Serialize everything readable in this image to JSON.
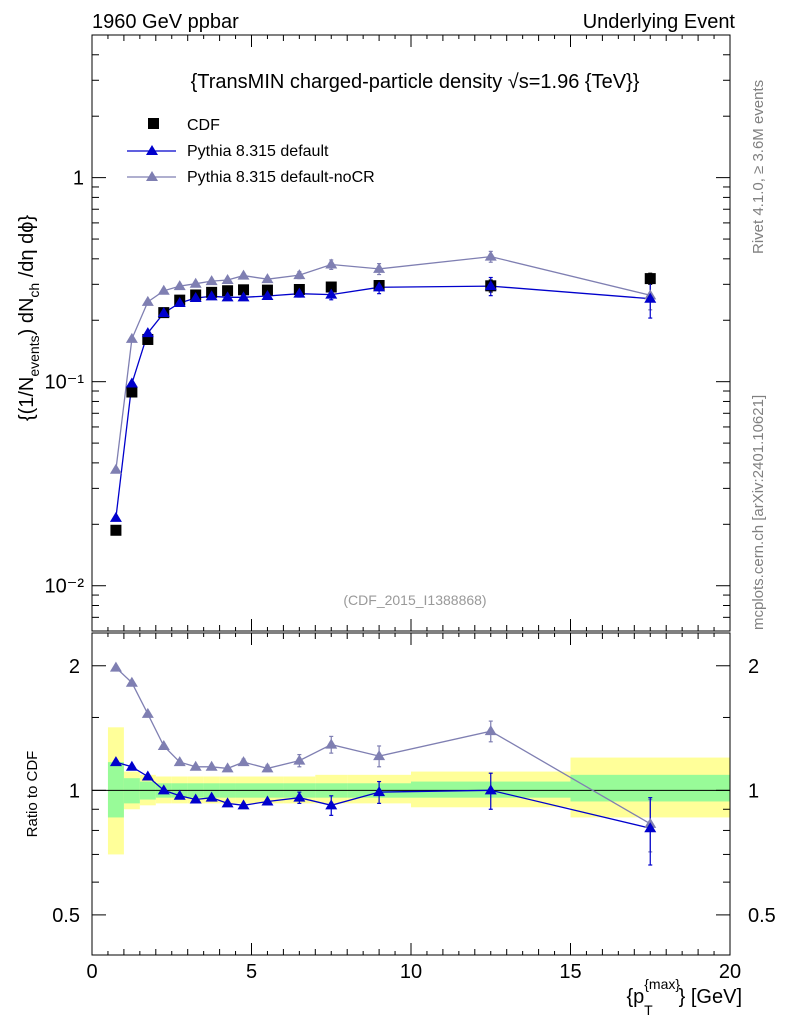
{
  "header": {
    "left": "1960 GeV ppbar",
    "right": "Underlying Event",
    "side_top": "Rivet 4.1.0, ≥ 3.6M events",
    "side_bottom": "mcplots.cern.ch [arXiv:2401.10621]"
  },
  "colors": {
    "cdf": "#000000",
    "pythia_default": "#0000cc",
    "pythia_nocr": "#7f7fb2",
    "band_inner": "#98fb98",
    "band_outer": "#ffff99",
    "watermark": "#999999"
  },
  "chart_data": [
    {
      "type": "scatter",
      "title": "{TransMIN charged-particle density √s=1.96 {TeV}}",
      "ylabel": "{(1/Nevents) dNch /dη dϕ}",
      "ylabel_parts": {
        "a": "{(1/N",
        "sub1": "events",
        "b": ") dN",
        "sub2": "ch",
        "c": " /dη  dϕ}"
      },
      "yscale": "log",
      "ylim": [
        0.006,
        5
      ],
      "xlim": [
        0,
        20
      ],
      "y_tick_labels": [
        {
          "value": 1,
          "label": "1"
        },
        {
          "value": 0.1,
          "label": "10⁻¹"
        },
        {
          "value": 0.01,
          "label": "10⁻²"
        }
      ],
      "watermark": "(CDF_2015_I1388868)",
      "legend_position": "top-left",
      "x": [
        0.75,
        1.25,
        1.75,
        2.25,
        2.75,
        3.25,
        3.75,
        4.25,
        4.75,
        5.5,
        6.5,
        7.5,
        9.0,
        12.5,
        17.5
      ],
      "series": [
        {
          "name": "CDF",
          "marker": "square",
          "values": [
            0.0187,
            0.089,
            0.161,
            0.218,
            0.251,
            0.266,
            0.274,
            0.279,
            0.282,
            0.281,
            0.283,
            0.291,
            0.296,
            0.295,
            0.32
          ],
          "errors": [
            0,
            0,
            0,
            0,
            0,
            0,
            0,
            0,
            0,
            0,
            0,
            0,
            0,
            0.02,
            0.02
          ]
        },
        {
          "name": "Pythia 8.315 default",
          "marker": "triangle",
          "values": [
            0.0215,
            0.098,
            0.173,
            0.217,
            0.243,
            0.257,
            0.262,
            0.259,
            0.259,
            0.263,
            0.27,
            0.267,
            0.29,
            0.294,
            0.255
          ],
          "errors": [
            0,
            0,
            0,
            0,
            0,
            0,
            0,
            0,
            0,
            0,
            0.01,
            0.015,
            0.02,
            0.03,
            0.05
          ]
        },
        {
          "name": "Pythia 8.315 default-noCR",
          "marker": "triangle",
          "values": [
            0.037,
            0.162,
            0.246,
            0.279,
            0.294,
            0.302,
            0.311,
            0.315,
            0.331,
            0.318,
            0.333,
            0.375,
            0.357,
            0.41,
            0.265
          ],
          "errors": [
            0,
            0,
            0,
            0,
            0,
            0,
            0,
            0,
            0.008,
            0.008,
            0.013,
            0.02,
            0.022,
            0.025,
            0.04
          ]
        }
      ]
    },
    {
      "type": "scatter",
      "ylabel": "Ratio to CDF",
      "xlabel": "{pT{max}} [GeV]",
      "xlabel_parts": {
        "a": "{p",
        "sub": "T",
        "sup": "{max}",
        "b": "} [GeV]"
      },
      "yscale": "log",
      "ylim": [
        0.4,
        2.4
      ],
      "xlim": [
        0,
        20
      ],
      "y_tick_labels": [
        {
          "value": 2,
          "label": "2"
        },
        {
          "value": 1,
          "label": "1"
        },
        {
          "value": 0.5,
          "label": "0.5"
        }
      ],
      "x_tick_labels": [
        {
          "value": 0,
          "label": "0"
        },
        {
          "value": 5,
          "label": "5"
        },
        {
          "value": 10,
          "label": "10"
        },
        {
          "value": 15,
          "label": "15"
        },
        {
          "value": 20,
          "label": "20"
        }
      ],
      "x": [
        0.75,
        1.25,
        1.75,
        2.25,
        2.75,
        3.25,
        3.75,
        4.25,
        4.75,
        5.5,
        6.5,
        7.5,
        9.0,
        12.5,
        17.5
      ],
      "bin_edges": [
        0.5,
        1.0,
        1.5,
        2.0,
        2.5,
        3.0,
        3.5,
        4.0,
        4.5,
        5.0,
        6.0,
        7.0,
        8.0,
        10.0,
        15.0,
        20.0
      ],
      "band_inner": {
        "low": [
          0.86,
          0.93,
          0.95,
          0.96,
          0.96,
          0.96,
          0.96,
          0.96,
          0.96,
          0.96,
          0.96,
          0.96,
          0.96,
          0.96,
          0.94
        ],
        "high": [
          1.17,
          1.07,
          1.05,
          1.04,
          1.04,
          1.04,
          1.04,
          1.04,
          1.04,
          1.04,
          1.04,
          1.04,
          1.04,
          1.05,
          1.09
        ]
      },
      "band_outer": {
        "low": [
          0.7,
          0.9,
          0.92,
          0.93,
          0.93,
          0.93,
          0.93,
          0.93,
          0.93,
          0.93,
          0.93,
          0.93,
          0.93,
          0.91,
          0.86
        ],
        "high": [
          1.42,
          1.11,
          1.09,
          1.08,
          1.08,
          1.08,
          1.08,
          1.08,
          1.08,
          1.08,
          1.08,
          1.09,
          1.09,
          1.11,
          1.2
        ]
      },
      "series": [
        {
          "name": "Pythia 8.315 default",
          "values": [
            1.17,
            1.14,
            1.08,
            1.0,
            0.97,
            0.95,
            0.96,
            0.93,
            0.92,
            0.94,
            0.96,
            0.92,
            0.99,
            1.0,
            0.81
          ],
          "errors": [
            0,
            0,
            0,
            0,
            0,
            0,
            0,
            0,
            0,
            0,
            0.03,
            0.05,
            0.06,
            0.1,
            0.15
          ]
        },
        {
          "name": "Pythia 8.315 default-noCR",
          "values": [
            1.98,
            1.82,
            1.53,
            1.28,
            1.17,
            1.14,
            1.14,
            1.13,
            1.17,
            1.13,
            1.18,
            1.29,
            1.21,
            1.39,
            0.83
          ],
          "errors": [
            0,
            0,
            0,
            0,
            0,
            0,
            0,
            0,
            0.02,
            0.02,
            0.04,
            0.06,
            0.07,
            0.08,
            0.12
          ]
        }
      ]
    }
  ]
}
